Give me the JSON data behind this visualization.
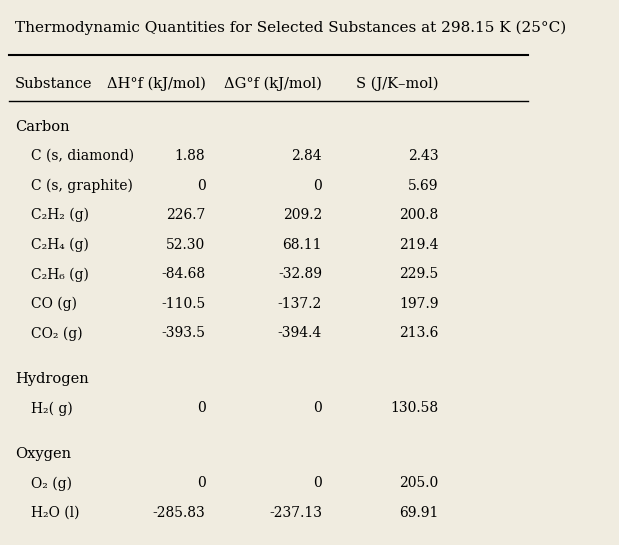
{
  "title": "Thermodynamic Quantities for Selected Substances at 298.15 K (25°C)",
  "col_headers": [
    "Substance",
    "ΔH°f (kJ/mol)",
    "ΔG°f (kJ/mol)",
    "S (J/K–mol)"
  ],
  "sections": [
    {
      "group": "Carbon",
      "rows": [
        [
          "C (s, diamond)",
          "1.88",
          "2.84",
          "2.43"
        ],
        [
          "C (s, graphite)",
          "0",
          "0",
          "5.69"
        ],
        [
          "C₂H₂ (g)",
          "226.7",
          "209.2",
          "200.8"
        ],
        [
          "C₂H₄ (g)",
          "52.30",
          "68.11",
          "219.4"
        ],
        [
          "C₂H₆ (g)",
          "-84.68",
          "-32.89",
          "229.5"
        ],
        [
          "CO (g)",
          "-110.5",
          "-137.2",
          "197.9"
        ],
        [
          "CO₂ (g)",
          "-393.5",
          "-394.4",
          "213.6"
        ]
      ]
    },
    {
      "group": "Hydrogen",
      "rows": [
        [
          "H₂( g)",
          "0",
          "0",
          "130.58"
        ]
      ]
    },
    {
      "group": "Oxygen",
      "rows": [
        [
          "O₂ (g)",
          "0",
          "0",
          "205.0"
        ],
        [
          "H₂O (l)",
          "-285.83",
          "-237.13",
          "69.91"
        ]
      ]
    }
  ],
  "bg_color": "#f0ece0",
  "font_family": "serif",
  "title_fontsize": 11,
  "header_fontsize": 10.5,
  "body_fontsize": 10,
  "group_fontsize": 10.5
}
